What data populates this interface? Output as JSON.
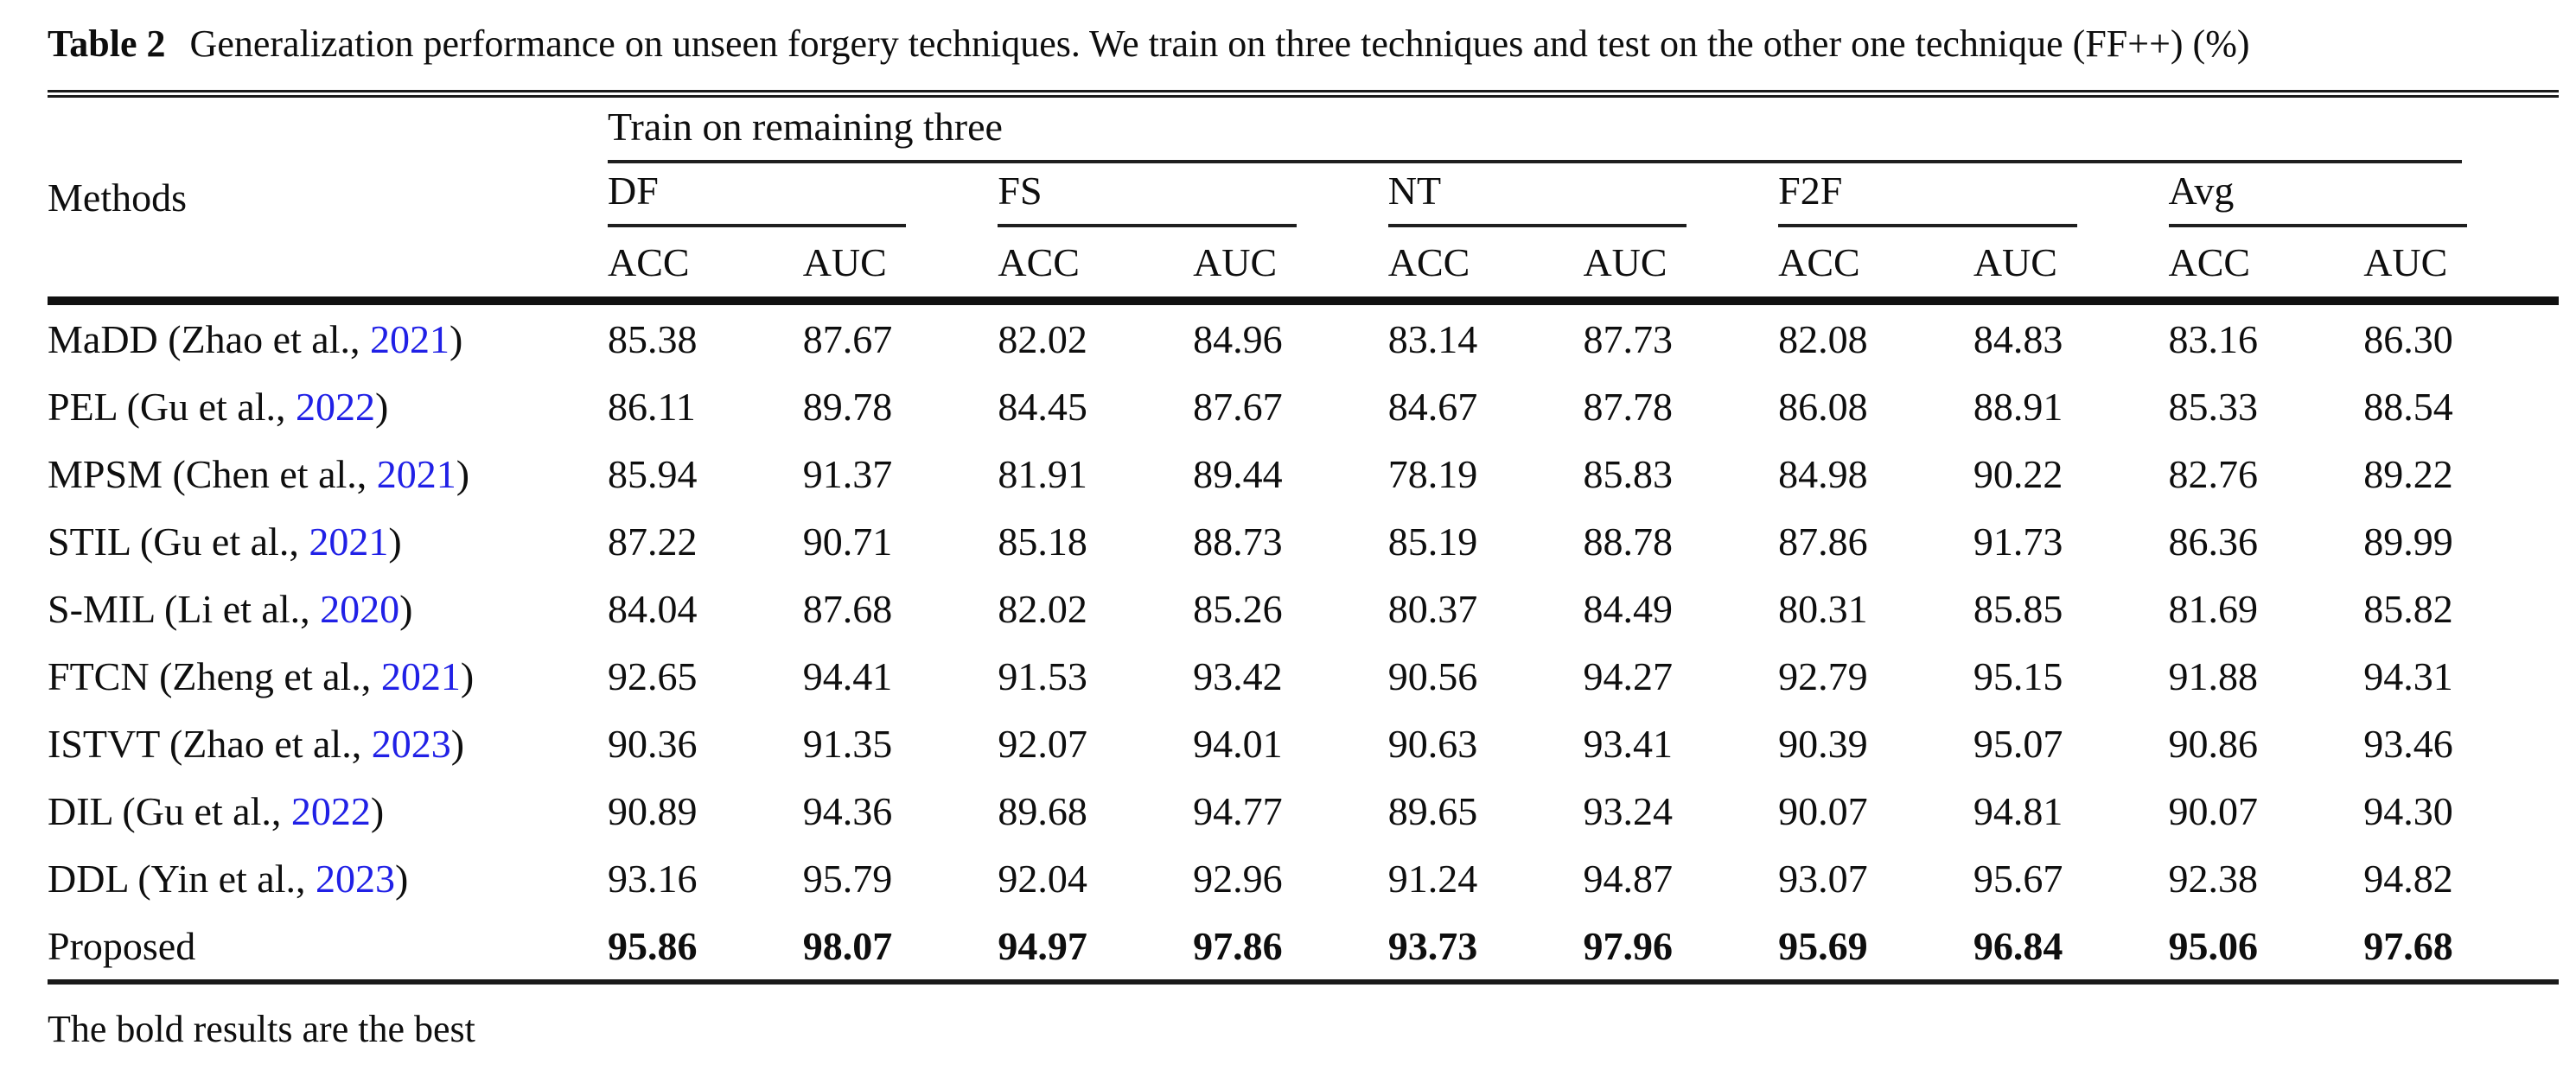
{
  "caption": {
    "label": "Table 2",
    "text": "Generalization performance on unseen forgery techniques. We train on three techniques and test on the other one technique (FF++) (%)"
  },
  "table": {
    "methods_header": "Methods",
    "span_header": "Train on remaining three",
    "groups": [
      {
        "label": "DF"
      },
      {
        "label": "FS"
      },
      {
        "label": "NT"
      },
      {
        "label": "F2F"
      },
      {
        "label": "Avg"
      }
    ],
    "subheaders": [
      "ACC",
      "AUC",
      "ACC",
      "AUC",
      "ACC",
      "AUC",
      "ACC",
      "AUC",
      "ACC",
      "AUC"
    ],
    "rows": [
      {
        "method_prefix": "MaDD (Zhao et al., ",
        "citation_year": "2021",
        "method_suffix": ")",
        "bold": false,
        "values": [
          "85.38",
          "87.67",
          "82.02",
          "84.96",
          "83.14",
          "87.73",
          "82.08",
          "84.83",
          "83.16",
          "86.30"
        ]
      },
      {
        "method_prefix": "PEL (Gu et al., ",
        "citation_year": "2022",
        "method_suffix": ")",
        "bold": false,
        "values": [
          "86.11",
          "89.78",
          "84.45",
          "87.67",
          "84.67",
          "87.78",
          "86.08",
          "88.91",
          "85.33",
          "88.54"
        ]
      },
      {
        "method_prefix": "MPSM (Chen et al., ",
        "citation_year": "2021",
        "method_suffix": ")",
        "bold": false,
        "values": [
          "85.94",
          "91.37",
          "81.91",
          "89.44",
          "78.19",
          "85.83",
          "84.98",
          "90.22",
          "82.76",
          "89.22"
        ]
      },
      {
        "method_prefix": "STIL (Gu et al., ",
        "citation_year": "2021",
        "method_suffix": ")",
        "bold": false,
        "values": [
          "87.22",
          "90.71",
          "85.18",
          "88.73",
          "85.19",
          "88.78",
          "87.86",
          "91.73",
          "86.36",
          "89.99"
        ]
      },
      {
        "method_prefix": "S-MIL (Li et al., ",
        "citation_year": "2020",
        "method_suffix": ")",
        "bold": false,
        "values": [
          "84.04",
          "87.68",
          "82.02",
          "85.26",
          "80.37",
          "84.49",
          "80.31",
          "85.85",
          "81.69",
          "85.82"
        ]
      },
      {
        "method_prefix": "FTCN (Zheng et al., ",
        "citation_year": "2021",
        "method_suffix": ")",
        "bold": false,
        "values": [
          "92.65",
          "94.41",
          "91.53",
          "93.42",
          "90.56",
          "94.27",
          "92.79",
          "95.15",
          "91.88",
          "94.31"
        ]
      },
      {
        "method_prefix": "ISTVT (Zhao et al., ",
        "citation_year": "2023",
        "method_suffix": ")",
        "bold": false,
        "values": [
          "90.36",
          "91.35",
          "92.07",
          "94.01",
          "90.63",
          "93.41",
          "90.39",
          "95.07",
          "90.86",
          "93.46"
        ]
      },
      {
        "method_prefix": "DIL (Gu et al., ",
        "citation_year": "2022",
        "method_suffix": ")",
        "bold": false,
        "values": [
          "90.89",
          "94.36",
          "89.68",
          "94.77",
          "89.65",
          "93.24",
          "90.07",
          "94.81",
          "90.07",
          "94.30"
        ]
      },
      {
        "method_prefix": "DDL (Yin et al., ",
        "citation_year": "2023",
        "method_suffix": ")",
        "bold": false,
        "values": [
          "93.16",
          "95.79",
          "92.04",
          "92.96",
          "91.24",
          "94.87",
          "93.07",
          "95.67",
          "92.38",
          "94.82"
        ]
      },
      {
        "method_prefix": "Proposed",
        "citation_year": "",
        "method_suffix": "",
        "bold": true,
        "values": [
          "95.86",
          "98.07",
          "94.97",
          "97.86",
          "93.73",
          "97.96",
          "95.69",
          "96.84",
          "95.06",
          "97.68"
        ]
      }
    ]
  },
  "footnote": "The bold results are the best",
  "colors": {
    "citation_blue": "#2020e6",
    "text": "#0e0e0e",
    "rule": "#1c1c1c"
  }
}
